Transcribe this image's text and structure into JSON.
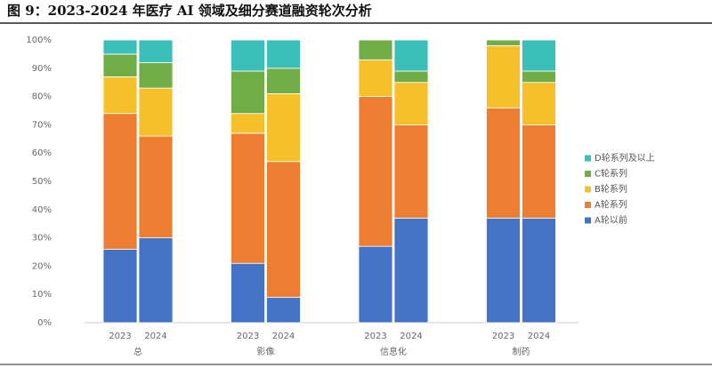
{
  "chart_data": {
    "type": "stacked_bar",
    "title": "图 9：2023-2024 年医疗 AI 领域及细分赛道融资轮次分析",
    "groups": [
      "总",
      "影像",
      "信息化",
      "制药"
    ],
    "categories": [
      "2023",
      "2024",
      "2023",
      "2024",
      "2023",
      "2024",
      "2023",
      "2024"
    ],
    "series": [
      {
        "name": "A轮以前",
        "color": "#4472c4",
        "values": [
          26,
          30,
          21,
          9,
          27,
          37,
          37,
          37
        ]
      },
      {
        "name": "A轮系列",
        "color": "#ed7d31",
        "values": [
          48,
          36,
          46,
          48,
          53,
          33,
          39,
          33
        ]
      },
      {
        "name": "B轮系列",
        "color": "#f6c02b",
        "values": [
          13,
          17,
          7,
          24,
          13,
          15,
          22,
          15
        ]
      },
      {
        "name": "C轮系列",
        "color": "#70ad47",
        "values": [
          8,
          9,
          15,
          9,
          7,
          4,
          2,
          4
        ]
      },
      {
        "name": "D轮系列及以上",
        "color": "#3bbfb8",
        "values": [
          5,
          8,
          11,
          10,
          0,
          11,
          0,
          11
        ]
      }
    ],
    "ylim": [
      0,
      100
    ],
    "yticks": [
      {
        "value": 0,
        "label": "0%"
      },
      {
        "value": 10,
        "label": "10%"
      },
      {
        "value": 20,
        "label": "20%"
      },
      {
        "value": 30,
        "label": "30%"
      },
      {
        "value": 40,
        "label": "40%"
      },
      {
        "value": 50,
        "label": "50%"
      },
      {
        "value": 60,
        "label": "60%"
      },
      {
        "value": 70,
        "label": "70%"
      },
      {
        "value": 80,
        "label": "80%"
      },
      {
        "value": 90,
        "label": "90%"
      },
      {
        "value": 100,
        "label": "100%"
      }
    ],
    "legend": "right",
    "grid": false
  }
}
